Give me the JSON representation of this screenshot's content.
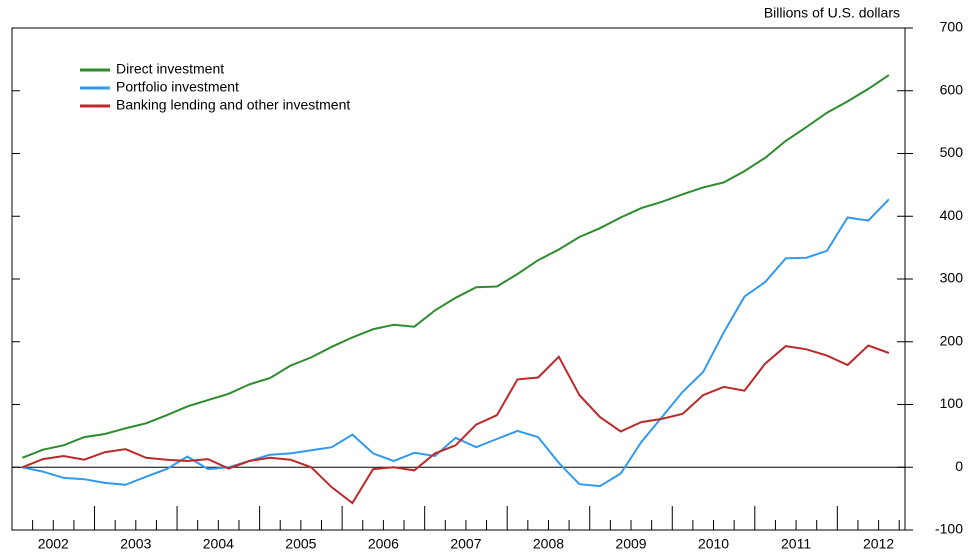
{
  "chart_data": {
    "type": "line",
    "y_axis_label": "Billions of U.S. dollars",
    "x": [
      2002.125,
      2002.375,
      2002.625,
      2002.875,
      2003.125,
      2003.375,
      2003.625,
      2003.875,
      2004.125,
      2004.375,
      2004.625,
      2004.875,
      2005.125,
      2005.375,
      2005.625,
      2005.875,
      2006.125,
      2006.375,
      2006.625,
      2006.875,
      2007.125,
      2007.375,
      2007.625,
      2007.875,
      2008.125,
      2008.375,
      2008.625,
      2008.875,
      2009.125,
      2009.375,
      2009.625,
      2009.875,
      2010.125,
      2010.375,
      2010.625,
      2010.875,
      2011.125,
      2011.375,
      2011.625,
      2011.875,
      2012.125,
      2012.375,
      2012.625
    ],
    "series": [
      {
        "name": "Direct investment",
        "color": "#2e8b2e",
        "values": [
          15,
          28,
          35,
          48,
          53,
          62,
          70,
          83,
          97,
          107,
          117,
          132,
          142,
          162,
          175,
          192,
          207,
          220,
          227,
          224,
          250,
          270,
          287,
          288,
          308,
          330,
          347,
          367,
          381,
          398,
          413,
          423,
          435,
          446,
          454,
          472,
          493,
          520,
          542,
          565,
          583,
          603,
          625
        ]
      },
      {
        "name": "Portfolio investment",
        "color": "#3399ee",
        "values": [
          0,
          -7,
          -17,
          -19,
          -25,
          -28,
          -15,
          -3,
          17,
          -3,
          0,
          10,
          20,
          22,
          27,
          32,
          52,
          22,
          10,
          23,
          18,
          47,
          32,
          45,
          58,
          48,
          7,
          -27,
          -30,
          -10,
          40,
          80,
          120,
          152,
          215,
          272,
          295,
          333,
          334,
          345,
          398,
          393,
          427
        ]
      },
      {
        "name": "Banking lending and other investment",
        "color": "#bb2a2a",
        "values": [
          0,
          13,
          18,
          12,
          24,
          29,
          15,
          12,
          10,
          13,
          -2,
          10,
          15,
          12,
          0,
          -32,
          -57,
          -3,
          0,
          -5,
          22,
          35,
          68,
          83,
          140,
          143,
          176,
          115,
          80,
          57,
          72,
          77,
          85,
          115,
          128,
          122,
          165,
          193,
          188,
          178,
          163,
          194,
          182
        ]
      }
    ],
    "xlim": [
      2002,
      2012.82
    ],
    "xticks": [
      {
        "value": 2002.5,
        "label": "2002"
      },
      {
        "value": 2003.5,
        "label": "2003"
      },
      {
        "value": 2004.5,
        "label": "2004"
      },
      {
        "value": 2005.5,
        "label": "2005"
      },
      {
        "value": 2006.5,
        "label": "2006"
      },
      {
        "value": 2007.5,
        "label": "2007"
      },
      {
        "value": 2008.5,
        "label": "2008"
      },
      {
        "value": 2009.5,
        "label": "2009"
      },
      {
        "value": 2010.5,
        "label": "2010"
      },
      {
        "value": 2011.5,
        "label": "2011"
      },
      {
        "value": 2012.5,
        "label": "2012"
      }
    ],
    "ylim": [
      -100,
      700
    ],
    "yticks": [
      -100,
      0,
      100,
      200,
      300,
      400,
      500,
      600,
      700
    ],
    "legend": "upper left"
  }
}
